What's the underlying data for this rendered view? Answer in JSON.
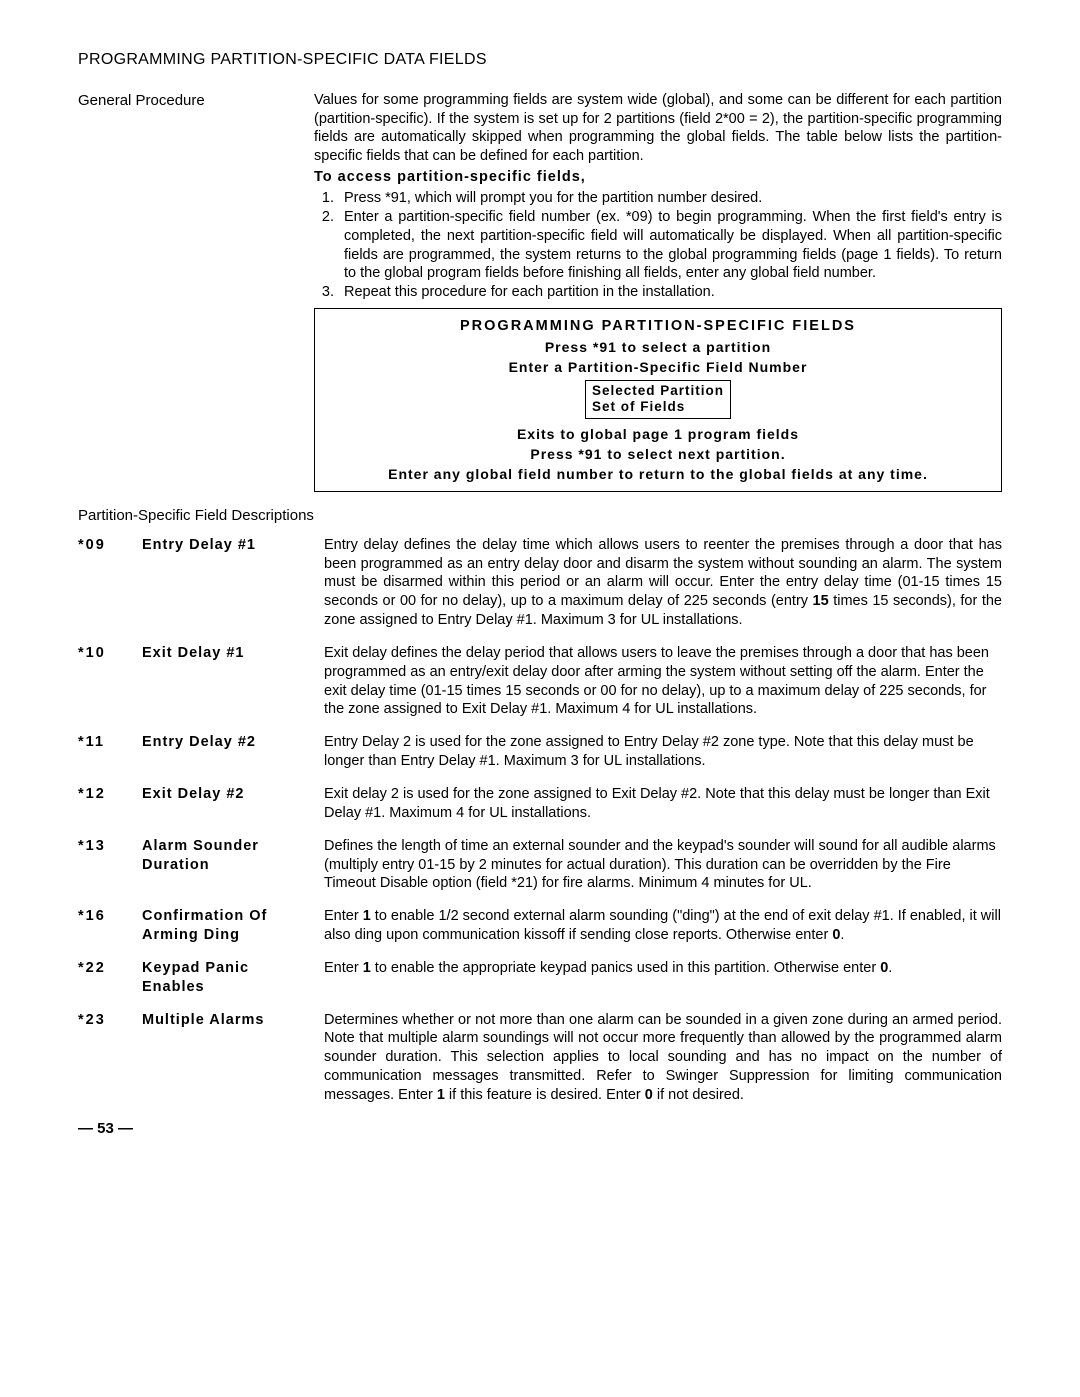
{
  "page": {
    "section_title": "PROGRAMMING PARTITION-SPECIFIC DATA FIELDS",
    "general_label": "General Procedure",
    "general_intro": "Values for some programming fields are system wide (global), and some can be different for each partition (partition-specific). If the system is set up for 2 partitions (field 2*00 = 2), the partition-specific programming fields are automatically skipped when programming the global fields. The table below lists the partition-specific fields that can be defined for each partition.",
    "access_head": "To access partition-specific fields,",
    "steps": [
      "Press *91, which will prompt you for the partition number desired.",
      "Enter a partition-specific field number (ex. *09) to begin programming. When the first field's entry is completed, the next partition-specific field will automatically be displayed. When all partition-specific fields are programmed, the system returns to the global programming fields (page 1 fields). To return to the global program fields before finishing all fields, enter any global field number.",
      "Repeat this procedure for each partition in the installation."
    ],
    "box": {
      "title": "PROGRAMMING PARTITION-SPECIFIC FIELDS",
      "line2": "Press *91 to select a partition",
      "line3": "Enter a Partition-Specific Field Number",
      "inner1": "Selected Partition",
      "inner2": "Set of Fields",
      "line4": "Exits to global page 1 program fields",
      "line5": "Press *91 to select next partition.",
      "line6": "Enter any global field number to return to the global fields at any time."
    },
    "subhead": "Partition-Specific Field Descriptions",
    "fields": [
      {
        "code": "*09",
        "name": "Entry Delay #1"
      },
      {
        "code": "*10",
        "name": "Exit Delay #1"
      },
      {
        "code": "*11",
        "name": "Entry Delay #2"
      },
      {
        "code": "*12",
        "name": "Exit Delay #2"
      },
      {
        "code": "*13",
        "name": "Alarm Sounder Duration"
      },
      {
        "code": "*16",
        "name": "Confirmation Of Arming Ding"
      },
      {
        "code": "*22",
        "name": "Keypad Panic Enables"
      },
      {
        "code": "*23",
        "name": "Multiple Alarms"
      }
    ],
    "desc": {
      "f09a": "Entry delay defines the delay time which allows users to reenter the premises through a door that has been programmed as an entry delay door and disarm the system without sounding an alarm. The system must be disarmed within this period or an alarm will occur. Enter the entry delay time (01-15 times 15 seconds or 00 for no delay), up to a maximum delay of 225 seconds (entry ",
      "f09b": "15",
      "f09c": " times 15 seconds), for the zone assigned to Entry Delay #1. Maximum 3 for UL installations.",
      "f10": "Exit delay defines the delay period that allows users to leave the premises through a door that has been programmed as an entry/exit delay door after arming the system without setting off the alarm. Enter the exit delay time (01-15 times 15 seconds or 00 for no delay), up to a maximum delay of 225 seconds, for the zone assigned to Exit Delay #1.  Maximum 4 for UL installations.",
      "f11": "Entry Delay 2 is used for the zone assigned to Entry Delay #2 zone type. Note that this delay must be longer than Entry Delay #1. Maximum 3 for UL installations.",
      "f12": "Exit delay 2 is used for the zone assigned to Exit Delay #2.  Note that this delay must be longer than Exit Delay #1.  Maximum 4 for UL installations.",
      "f13": "Defines the length of time an external sounder and the keypad's sounder will sound for all audible alarms (multiply entry 01-15 by 2 minutes for actual duration). This duration can be overridden by the Fire Timeout Disable option (field *21) for fire alarms. Minimum 4 minutes for UL.",
      "f16a": "Enter ",
      "f16b": "1",
      "f16c": " to enable 1/2 second external alarm sounding  (\"ding\") at the end of exit delay #1. If enabled, it will also ding upon communication kissoff if sending close reports. Otherwise enter ",
      "f16d": "0",
      "f16e": ".",
      "f22a": "Enter ",
      "f22b": "1",
      "f22c": " to enable the appropriate keypad panics used in this partition. Otherwise enter ",
      "f22d": "0",
      "f22e": ".",
      "f23a": "Determines whether or not more than one alarm can be sounded in a given zone during an armed period. Note that multiple alarm soundings will not occur more frequently than allowed by the programmed alarm sounder duration. This selection applies to local sounding and has no impact on the number of communication messages transmitted. Refer to Swinger Suppression for limiting communication messages. Enter ",
      "f23b": "1",
      "f23c": " if this feature is desired. Enter ",
      "f23d": "0",
      "f23e": " if not desired."
    },
    "footer": "— 53 —"
  }
}
